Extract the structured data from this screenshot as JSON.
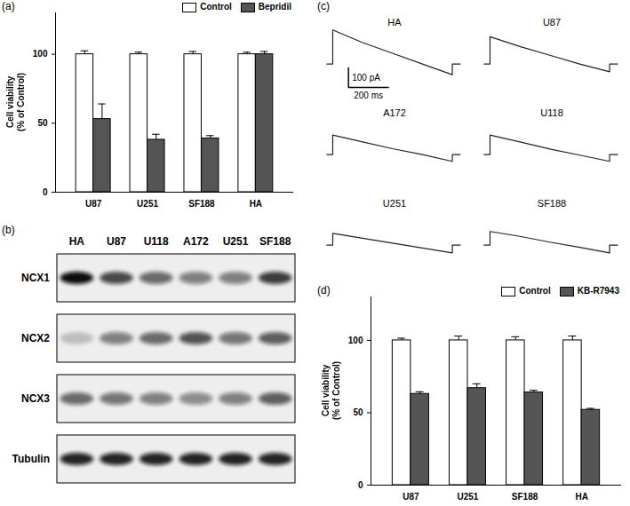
{
  "chart_data": [
    {
      "type": "bar",
      "title": "(a)",
      "categories": [
        "U87",
        "U251",
        "SF188",
        "HA"
      ],
      "y_label": "Cell viability\n(% of Control)",
      "ylim": [
        0,
        130
      ],
      "yticks": [
        0,
        50,
        100
      ],
      "legend": "top-right",
      "series": [
        {
          "name": "Control",
          "color": "#ffffff",
          "values": [
            100,
            100,
            100,
            100
          ],
          "error": [
            2.5,
            1.5,
            2,
            1.5
          ]
        },
        {
          "name": "Bepridil",
          "color": "#555555",
          "values": [
            53,
            38,
            39,
            100
          ],
          "error": [
            11,
            4,
            2,
            2
          ]
        }
      ]
    },
    {
      "type": "blot",
      "title": "(b)",
      "columns": [
        "HA",
        "U87",
        "U118",
        "A172",
        "U251",
        "SF188"
      ],
      "rows": [
        {
          "name": "NCX1",
          "values": [
            1.0,
            0.75,
            0.6,
            0.5,
            0.5,
            0.8
          ]
        },
        {
          "name": "NCX2",
          "values": [
            0.2,
            0.5,
            0.6,
            0.7,
            0.55,
            0.65
          ]
        },
        {
          "name": "NCX3",
          "values": [
            0.6,
            0.55,
            0.5,
            0.45,
            0.5,
            0.65
          ]
        },
        {
          "name": "Tubulin",
          "values": [
            0.9,
            0.9,
            0.9,
            0.9,
            0.9,
            0.9
          ]
        }
      ]
    },
    {
      "type": "line",
      "title": "(c)",
      "tick_labels": false,
      "color": "#222222",
      "x": [
        -30,
        0,
        0,
        150,
        300,
        450,
        600,
        600,
        640
      ],
      "xlim": [
        -40,
        660
      ],
      "ylim": [
        -130,
        190
      ],
      "scale_bar": {
        "y": 100,
        "y_label": "100 pA",
        "x": 200,
        "x_label": "200 ms"
      },
      "series": [
        {
          "name": "HA",
          "values": [
            0,
            0,
            175,
            110,
            55,
            0,
            -55,
            0,
            0
          ]
        },
        {
          "name": "U87",
          "values": [
            0,
            0,
            140,
            90,
            45,
            0,
            -40,
            0,
            0
          ]
        },
        {
          "name": "A172",
          "values": [
            0,
            0,
            100,
            65,
            30,
            0,
            -35,
            0,
            0
          ]
        },
        {
          "name": "U118",
          "values": [
            0,
            0,
            100,
            65,
            28,
            -3,
            -35,
            0,
            0
          ]
        },
        {
          "name": "U251",
          "values": [
            0,
            0,
            60,
            35,
            10,
            -15,
            -40,
            0,
            0
          ]
        },
        {
          "name": "SF188",
          "values": [
            0,
            0,
            70,
            45,
            15,
            -12,
            -40,
            0,
            0
          ]
        }
      ]
    },
    {
      "type": "bar",
      "title": "(d)",
      "categories": [
        "U87",
        "U251",
        "SF188",
        "HA"
      ],
      "y_label": "Cell viability\n(% of Control)",
      "ylim": [
        0,
        130
      ],
      "yticks": [
        0,
        50,
        100
      ],
      "legend": "top-right",
      "series": [
        {
          "name": "Control",
          "color": "#ffffff",
          "values": [
            100,
            100,
            100,
            100
          ],
          "error": [
            1.5,
            3,
            2.5,
            3
          ]
        },
        {
          "name": "KB-R7943",
          "color": "#555555",
          "values": [
            63,
            67,
            64,
            52
          ],
          "error": [
            1.5,
            3,
            1.5,
            1
          ]
        }
      ]
    }
  ]
}
